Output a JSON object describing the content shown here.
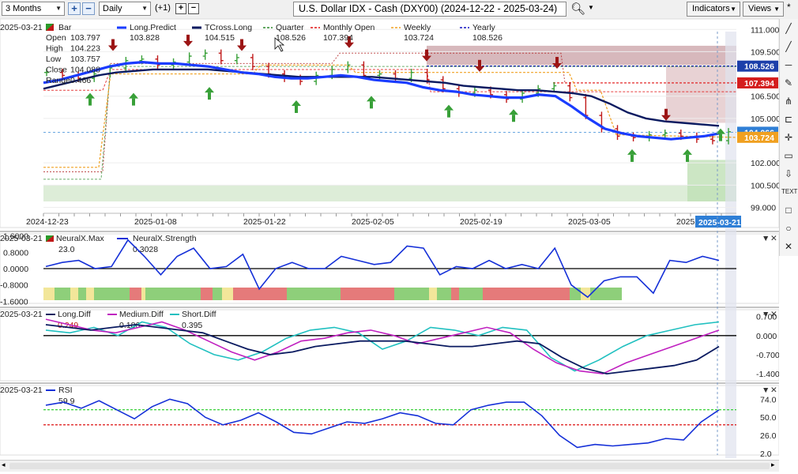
{
  "toolbar": {
    "range": "3 Months",
    "interval": "Daily",
    "step": "(+1)",
    "title": "U.S. Dollar IDX - Cash (DXY00) (2024-12-22 - 2025-03-24)",
    "indicators_label": "Indicators",
    "views_label": "Views",
    "search_icon": "search-icon",
    "star_label": "*"
  },
  "colors": {
    "long_predict": "#1a3cff",
    "tcross": "#0a1a60",
    "quarter": "#2c8a2c",
    "monthly_open": "#e01010",
    "weekly": "#f0a020",
    "yearly": "#1010c0",
    "up_arrow": "#38a038",
    "down_arrow": "#9c1515"
  },
  "main_panel": {
    "date_label": "2025-03-21",
    "ohlc": [
      {
        "k": "Open",
        "v": "103.797"
      },
      {
        "k": "High",
        "v": "104.223"
      },
      {
        "k": "Low",
        "v": "103.757"
      },
      {
        "k": "Close",
        "v": "104.088"
      },
      {
        "k": "Range",
        "v": "0.466"
      }
    ],
    "legend": [
      {
        "name": "Bar",
        "value": ""
      },
      {
        "name": "Long.Predict",
        "value": "103.828"
      },
      {
        "name": "TCross.Long",
        "value": "104.515"
      },
      {
        "name": "Quarter",
        "value": "108.526"
      },
      {
        "name": "Monthly Open",
        "value": "107.394"
      },
      {
        "name": "Weekly",
        "value": "103.724"
      },
      {
        "name": "Yearly",
        "value": "108.526"
      }
    ],
    "y_ticks": [
      "111.000",
      "109.500",
      "106.500",
      "105.000",
      "102.000",
      "100.500",
      "99.000"
    ],
    "price_tags": [
      {
        "label": "108.526",
        "bg": "#1c3faa"
      },
      {
        "label": "107.394",
        "bg": "#d41e1e"
      },
      {
        "label": "104.066",
        "bg": "#2f7fd6"
      },
      {
        "label": "103.724",
        "bg": "#f0a020"
      }
    ],
    "x_ticks": [
      "2024-12-23",
      "2025-01-08",
      "2025-01-22",
      "2025-02-05",
      "2025-02-19",
      "2025-03-05",
      "2025"
    ],
    "current_date_tag": "2025-03-21"
  },
  "neural_panel": {
    "date_label": "2025-03-21",
    "legend": [
      {
        "name": "NeuralX.Max",
        "value": "23.0"
      },
      {
        "name": "NeuralX.Strength",
        "value": "0.3028"
      }
    ],
    "y_ticks": [
      "1.6000",
      "0.8000",
      "0.0000",
      "-0.8000",
      "-1.6000"
    ]
  },
  "diff_panel": {
    "date_label": "2025-03-21",
    "legend": [
      {
        "name": "Long.Diff",
        "value": "0.249"
      },
      {
        "name": "Medium.Diff",
        "value": "0.186"
      },
      {
        "name": "Short.Diff",
        "value": "0.395"
      }
    ],
    "y_ticks": [
      "0.700",
      "0.000",
      "-0.700",
      "-1.400"
    ]
  },
  "rsi_panel": {
    "date_label": "2025-03-21",
    "legend": [
      {
        "name": "RSI",
        "value": "59.9"
      }
    ],
    "y_ticks": [
      "74.0",
      "50.0",
      "26.0",
      "2.0"
    ]
  },
  "chart_data": {
    "type": "line",
    "price_closes": [
      108.1,
      107.9,
      107.7,
      108.0,
      108.4,
      108.9,
      109.0,
      108.6,
      108.8,
      109.2,
      109.4,
      108.9,
      109.1,
      108.5,
      108.0,
      107.7,
      107.5,
      107.9,
      108.3,
      108.6,
      107.9,
      108.0,
      107.7,
      108.1,
      107.6,
      107.0,
      106.7,
      106.9,
      106.6,
      106.3,
      106.7,
      107.0,
      107.2,
      106.4,
      105.2,
      104.3,
      103.8,
      103.7,
      103.9,
      104.0,
      103.8,
      103.6,
      103.5,
      104.1
    ],
    "long_predict": [
      107.4,
      107.6,
      107.9,
      108.2,
      108.5,
      108.7,
      108.8,
      108.7,
      108.7,
      108.6,
      108.5,
      108.3,
      108.1,
      108.0,
      107.8,
      107.7,
      107.7,
      107.8,
      107.9,
      107.8,
      107.6,
      107.5,
      107.4,
      107.1,
      106.9,
      106.8,
      106.6,
      106.5,
      106.4,
      106.4,
      106.6,
      106.5,
      105.8,
      105.0,
      104.3,
      104.0,
      103.8,
      103.7,
      103.6,
      103.7,
      103.8,
      104.0
    ],
    "tcross_long": [
      107.0,
      107.3,
      107.6,
      107.9,
      108.1,
      108.2,
      108.3,
      108.3,
      108.3,
      108.3,
      108.2,
      108.1,
      108.0,
      107.9,
      107.8,
      107.8,
      107.8,
      107.8,
      107.8,
      107.7,
      107.6,
      107.5,
      107.4,
      107.2,
      107.1,
      107.0,
      106.9,
      106.9,
      106.8,
      106.7,
      106.5,
      106.0,
      105.4,
      105.0,
      104.8,
      104.7,
      104.6,
      104.5
    ],
    "levels": {
      "quarter": 108.526,
      "monthly_open": 107.394,
      "weekly": 103.724,
      "yearly": 108.526
    },
    "neural_strength": [
      0.1,
      0.3,
      0.4,
      0.0,
      0.1,
      1.4,
      0.6,
      -0.3,
      0.6,
      1.0,
      0.0,
      0.1,
      0.7,
      -1.0,
      0.0,
      0.3,
      0.0,
      0.0,
      0.6,
      0.4,
      0.2,
      0.3,
      1.1,
      1.0,
      -0.3,
      0.1,
      0.0,
      0.4,
      0.0,
      0.2,
      0.0,
      1.0,
      -0.8,
      -1.4,
      -0.6,
      -0.4,
      -0.4,
      -1.2,
      0.4,
      0.3,
      0.6,
      0.4
    ],
    "long_diff": [
      0.4,
      0.3,
      0.2,
      0.3,
      0.4,
      0.3,
      0.2,
      0.1,
      -0.2,
      -0.5,
      -0.7,
      -0.6,
      -0.4,
      -0.3,
      -0.2,
      -0.2,
      -0.2,
      -0.3,
      -0.4,
      -0.4,
      -0.3,
      -0.2,
      -0.3,
      -0.8,
      -1.2,
      -1.4,
      -1.3,
      -1.2,
      -1.1,
      -0.9,
      -0.4
    ],
    "medium_diff": [
      0.6,
      0.4,
      0.2,
      0.1,
      0.3,
      0.5,
      0.2,
      -0.2,
      -0.6,
      -0.9,
      -0.6,
      -0.2,
      -0.1,
      0.1,
      0.2,
      0.0,
      -0.3,
      -0.1,
      0.1,
      0.3,
      0.1,
      -0.5,
      -1.0,
      -1.3,
      -1.4,
      -1.0,
      -0.7,
      -0.4,
      -0.1,
      0.2
    ],
    "short_diff": [
      0.2,
      0.1,
      0.3,
      0.0,
      0.5,
      0.3,
      -0.3,
      -0.7,
      -0.9,
      -0.6,
      -0.1,
      0.2,
      0.3,
      0.1,
      -0.5,
      -0.2,
      0.3,
      0.2,
      0.0,
      0.3,
      0.2,
      -0.8,
      -1.3,
      -0.9,
      -0.4,
      0.0,
      0.2,
      0.4,
      0.5
    ],
    "rsi": [
      66,
      70,
      62,
      72,
      60,
      48,
      64,
      74,
      68,
      50,
      40,
      46,
      56,
      44,
      30,
      28,
      36,
      44,
      42,
      48,
      56,
      52,
      42,
      40,
      60,
      66,
      70,
      70,
      52,
      26,
      10,
      14,
      12,
      14,
      16,
      22,
      20,
      44,
      59.9
    ],
    "rsi_levels": {
      "upper": 60,
      "lower": 40
    }
  }
}
